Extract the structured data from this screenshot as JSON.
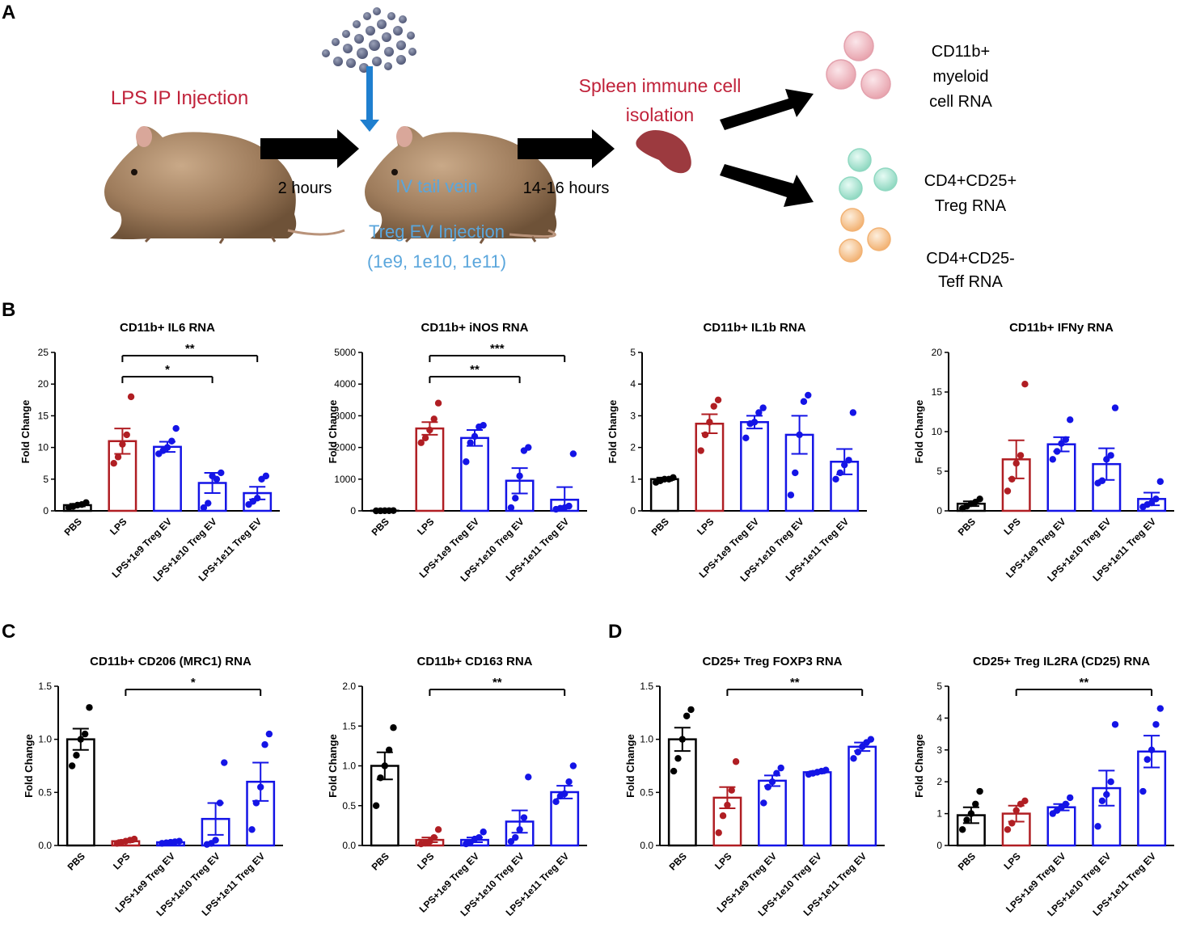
{
  "panel_labels": {
    "A": "A",
    "B": "B",
    "C": "C",
    "D": "D"
  },
  "schematic": {
    "lps_injection": "LPS IP Injection",
    "step1_time": "2 hours",
    "iv_line1": "IV tail vein",
    "iv_line2": "Treg EV Injection",
    "iv_line3": "(1e9, 1e10, 1e11)",
    "step2_time": "14-16 hours",
    "spleen_line1": "Spleen immune cell",
    "spleen_line2": "isolation",
    "out1_line1": "CD11b+",
    "out1_line2": "myeloid",
    "out1_line3": "cell RNA",
    "out2_line1": "CD4+CD25+",
    "out2_line2": "Treg RNA",
    "out3_line1": "CD4+CD25-",
    "out3_line2": "Teff RNA",
    "colors": {
      "lps_text": "#c0223a",
      "iv_text": "#5aa6dc",
      "arrow_down": "#1f7fcf",
      "spleen": "#9c3a3f",
      "myeloid_cell": "#e8a4ae",
      "treg_cell": "#9fe0cc",
      "teff_cell": "#f4b77a"
    }
  },
  "chart_data": [
    {
      "type": "bar",
      "id": "il6",
      "title": "CD11b+ IL6 RNA",
      "ylabel": "Fold Change",
      "categories": [
        "PBS",
        "LPS",
        "LPS+1e9 Treg EV",
        "LPS+1e10 Treg EV",
        "LPS+1e11 Treg EV"
      ],
      "colors": [
        "#000000",
        "#b01e23",
        "#1414e6",
        "#1414e6",
        "#1414e6"
      ],
      "values": [
        0.9,
        11.0,
        10.1,
        4.4,
        2.8
      ],
      "sem": [
        0.2,
        2.0,
        0.8,
        1.6,
        1.0
      ],
      "points": [
        [
          0.5,
          0.7,
          0.9,
          1.0,
          1.3
        ],
        [
          7.5,
          8.5,
          10.5,
          12.0,
          18.0
        ],
        [
          9.0,
          9.5,
          10.0,
          11.0,
          13.0
        ],
        [
          0.5,
          1.2,
          5.5,
          5.0,
          6.0
        ],
        [
          1.0,
          1.5,
          2.0,
          5.0,
          5.5
        ]
      ],
      "ylim": [
        0,
        25
      ],
      "yticks": [
        0,
        5,
        10,
        15,
        20,
        25
      ],
      "significance": [
        {
          "from": 1,
          "to": 3,
          "label": "*"
        },
        {
          "from": 1,
          "to": 4,
          "label": "**"
        }
      ]
    },
    {
      "type": "bar",
      "id": "inos",
      "title": "CD11b+ iNOS RNA",
      "ylabel": "Fold Change",
      "categories": [
        "PBS",
        "LPS",
        "LPS+1e9 Treg EV",
        "LPS+1e10 Treg EV",
        "LPS+1e11 Treg EV"
      ],
      "colors": [
        "#000000",
        "#b01e23",
        "#1414e6",
        "#1414e6",
        "#1414e6"
      ],
      "values": [
        5,
        2600,
        2300,
        950,
        350
      ],
      "sem": [
        2,
        200,
        250,
        400,
        400
      ],
      "points": [
        [
          0,
          2,
          4,
          6,
          8
        ],
        [
          2150,
          2300,
          2550,
          2900,
          3400
        ],
        [
          1550,
          2150,
          2350,
          2650,
          2700
        ],
        [
          100,
          400,
          1100,
          1900,
          2000
        ],
        [
          50,
          80,
          100,
          150,
          1800
        ]
      ],
      "ylim": [
        0,
        5000
      ],
      "yticks": [
        0,
        1000,
        2000,
        3000,
        4000,
        5000
      ],
      "significance": [
        {
          "from": 1,
          "to": 3,
          "label": "**"
        },
        {
          "from": 1,
          "to": 4,
          "label": "***"
        }
      ]
    },
    {
      "type": "bar",
      "id": "il1b",
      "title": "CD11b+ IL1b RNA",
      "ylabel": "Fold Change",
      "categories": [
        "PBS",
        "LPS",
        "LPS+1e9 Treg EV",
        "LPS+1e10 Treg EV",
        "LPS+1e11 Treg EV"
      ],
      "colors": [
        "#000000",
        "#b01e23",
        "#1414e6",
        "#1414e6",
        "#1414e6"
      ],
      "values": [
        1.0,
        2.75,
        2.8,
        2.4,
        1.55
      ],
      "sem": [
        0.05,
        0.3,
        0.2,
        0.6,
        0.4
      ],
      "points": [
        [
          0.9,
          0.95,
          1.0,
          1.0,
          1.05
        ],
        [
          1.9,
          2.4,
          2.8,
          3.3,
          3.5
        ],
        [
          2.3,
          2.75,
          2.8,
          3.1,
          3.25
        ],
        [
          0.5,
          1.2,
          2.4,
          3.45,
          3.65
        ],
        [
          1.0,
          1.2,
          1.45,
          1.6,
          3.1
        ]
      ],
      "ylim": [
        0,
        5
      ],
      "yticks": [
        0,
        1,
        2,
        3,
        4,
        5
      ],
      "significance": []
    },
    {
      "type": "bar",
      "id": "ifng",
      "title": "CD11b+ IFNy RNA",
      "ylabel": "Fold Change",
      "categories": [
        "PBS",
        "LPS",
        "LPS+1e9 Treg EV",
        "LPS+1e10 Treg EV",
        "LPS+1e11 Treg EV"
      ],
      "colors": [
        "#000000",
        "#b01e23",
        "#1414e6",
        "#1414e6",
        "#1414e6"
      ],
      "values": [
        0.9,
        6.5,
        8.4,
        5.9,
        1.5
      ],
      "sem": [
        0.3,
        2.4,
        0.9,
        2.0,
        0.8
      ],
      "points": [
        [
          0.3,
          0.6,
          0.9,
          1.1,
          1.5
        ],
        [
          2.5,
          4.0,
          6.0,
          7.0,
          16.0
        ],
        [
          6.5,
          7.5,
          8.5,
          9.0,
          11.5
        ],
        [
          3.5,
          3.8,
          6.5,
          7.0,
          13.0
        ],
        [
          0.5,
          0.8,
          1.0,
          1.5,
          3.7
        ]
      ],
      "ylim": [
        0,
        20
      ],
      "yticks": [
        0,
        5,
        10,
        15,
        20
      ],
      "significance": []
    },
    {
      "type": "bar",
      "id": "cd206",
      "title": "CD11b+ CD206 (MRC1) RNA",
      "ylabel": "Fold Change",
      "categories": [
        "PBS",
        "LPS",
        "LPS+1e9 Treg EV",
        "LPS+1e10 Treg EV",
        "LPS+1e11 Treg EV"
      ],
      "colors": [
        "#000000",
        "#b01e23",
        "#1414e6",
        "#1414e6",
        "#1414e6"
      ],
      "values": [
        1.0,
        0.04,
        0.03,
        0.25,
        0.6
      ],
      "sem": [
        0.1,
        0.01,
        0.005,
        0.15,
        0.18
      ],
      "points": [
        [
          0.75,
          0.85,
          1.0,
          1.05,
          1.3
        ],
        [
          0.02,
          0.03,
          0.04,
          0.05,
          0.06
        ],
        [
          0.02,
          0.025,
          0.03,
          0.035,
          0.04
        ],
        [
          0.01,
          0.02,
          0.05,
          0.4,
          0.78
        ],
        [
          0.15,
          0.4,
          0.55,
          0.95,
          1.05
        ]
      ],
      "ylim": [
        0,
        1.5
      ],
      "yticks": [
        "0.0",
        "0.5",
        "1.0",
        "1.5"
      ],
      "significance": [
        {
          "from": 1,
          "to": 4,
          "label": "*"
        }
      ]
    },
    {
      "type": "bar",
      "id": "cd163",
      "title": "CD11b+ CD163 RNA",
      "ylabel": "Fold Change",
      "categories": [
        "PBS",
        "LPS",
        "LPS+1e9 Treg EV",
        "LPS+1e10 Treg EV",
        "LPS+1e11 Treg EV"
      ],
      "colors": [
        "#000000",
        "#b01e23",
        "#1414e6",
        "#1414e6",
        "#1414e6"
      ],
      "values": [
        1.0,
        0.07,
        0.07,
        0.3,
        0.67
      ],
      "sem": [
        0.17,
        0.03,
        0.03,
        0.14,
        0.08
      ],
      "points": [
        [
          0.5,
          0.85,
          1.0,
          1.2,
          1.48
        ],
        [
          0.02,
          0.03,
          0.05,
          0.1,
          0.2
        ],
        [
          0.02,
          0.04,
          0.08,
          0.1,
          0.17
        ],
        [
          0.05,
          0.1,
          0.2,
          0.35,
          0.86
        ],
        [
          0.55,
          0.62,
          0.65,
          0.8,
          1.0
        ]
      ],
      "ylim": [
        0,
        2.0
      ],
      "yticks": [
        "0.0",
        "0.5",
        "1.0",
        "1.5",
        "2.0"
      ],
      "significance": [
        {
          "from": 1,
          "to": 4,
          "label": "**"
        }
      ]
    },
    {
      "type": "bar",
      "id": "foxp3",
      "title": "CD25+ Treg FOXP3 RNA",
      "ylabel": "Fold Change",
      "categories": [
        "PBS",
        "LPS",
        "LPS+1e9 Treg EV",
        "LPS+1e10 Treg EV",
        "LPS+1e11 Treg EV"
      ],
      "colors": [
        "#000000",
        "#b01e23",
        "#1414e6",
        "#1414e6",
        "#1414e6"
      ],
      "values": [
        1.0,
        0.45,
        0.61,
        0.69,
        0.93
      ],
      "sem": [
        0.11,
        0.1,
        0.05,
        0.01,
        0.04
      ],
      "points": [
        [
          0.7,
          0.82,
          1.0,
          1.22,
          1.28
        ],
        [
          0.12,
          0.28,
          0.38,
          0.52,
          0.79
        ],
        [
          0.4,
          0.55,
          0.6,
          0.68,
          0.73
        ],
        [
          0.67,
          0.68,
          0.69,
          0.7,
          0.71
        ],
        [
          0.82,
          0.88,
          0.93,
          0.97,
          1.0
        ]
      ],
      "ylim": [
        0,
        1.5
      ],
      "yticks": [
        "0.0",
        "0.5",
        "1.0",
        "1.5"
      ],
      "significance": [
        {
          "from": 1,
          "to": 4,
          "label": "**"
        }
      ]
    },
    {
      "type": "bar",
      "id": "il2ra",
      "title": "CD25+ Treg IL2RA (CD25) RNA",
      "ylabel": "Fold Change",
      "categories": [
        "PBS",
        "LPS",
        "LPS+1e9 Treg EV",
        "LPS+1e10 Treg EV",
        "LPS+1e11 Treg EV"
      ],
      "colors": [
        "#000000",
        "#b01e23",
        "#1414e6",
        "#1414e6",
        "#1414e6"
      ],
      "values": [
        0.95,
        1.0,
        1.2,
        1.8,
        2.95
      ],
      "sem": [
        0.25,
        0.25,
        0.1,
        0.55,
        0.5
      ],
      "points": [
        [
          0.5,
          0.8,
          1.0,
          1.3,
          1.7
        ],
        [
          0.5,
          0.7,
          1.1,
          1.3,
          1.4
        ],
        [
          1.0,
          1.1,
          1.2,
          1.3,
          1.5
        ],
        [
          0.6,
          1.4,
          1.6,
          2.0,
          3.8
        ],
        [
          1.7,
          2.7,
          3.0,
          3.8,
          4.3
        ]
      ],
      "ylim": [
        0,
        5
      ],
      "yticks": [
        0,
        1,
        2,
        3,
        4,
        5
      ],
      "significance": [
        {
          "from": 1,
          "to": 4,
          "label": "**"
        }
      ]
    }
  ]
}
